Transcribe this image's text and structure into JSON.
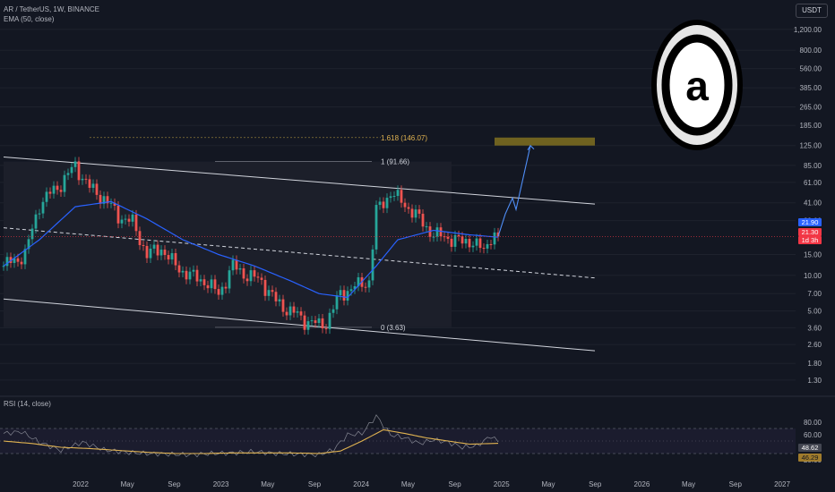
{
  "header": {
    "symbol": "AR / TetherUS, 1W, BINANCE",
    "ema_label": "EMA (50, close)",
    "rsi_label": "RSI (14, close)",
    "currency": "USDT"
  },
  "price_axis": {
    "ticks": [
      "1,200.00",
      "800.00",
      "560.00",
      "385.00",
      "265.00",
      "185.00",
      "125.00",
      "85.00",
      "61.00",
      "41.00",
      "29.00",
      "15.00",
      "10.00",
      "7.00",
      "5.00",
      "3.60",
      "2.60",
      "1.80",
      "1.30"
    ],
    "tick_values": [
      1200,
      800,
      560,
      385,
      265,
      185,
      125,
      85,
      61,
      41,
      29,
      15,
      10,
      7,
      5,
      3.6,
      2.6,
      1.8,
      1.3
    ],
    "scale": "log",
    "range": [
      1.0,
      1500
    ]
  },
  "rsi_axis": {
    "ticks": [
      "80.00",
      "60.00",
      "20.00"
    ],
    "tick_values": [
      80,
      60,
      20
    ],
    "range": [
      0,
      100
    ],
    "bands": [
      30,
      70
    ]
  },
  "time_axis": {
    "labels": [
      "2022",
      "May",
      "Sep",
      "2023",
      "May",
      "Sep",
      "2024",
      "May",
      "Sep",
      "2025",
      "May",
      "Sep",
      "2026",
      "May",
      "Sep",
      "2027"
    ]
  },
  "tags": {
    "price": "21.90",
    "close": "21.30",
    "countdown": "1d 3h",
    "rsi": "48.62",
    "rsi_ma": "46.29"
  },
  "fibonacci": [
    {
      "label": "1.618 (146.07)",
      "price": 146.07
    },
    {
      "label": "1 (91.66)",
      "price": 91.66
    },
    {
      "label": "0 (3.63)",
      "price": 3.63
    }
  ],
  "colors": {
    "background": "#131722",
    "up": "#26a69a",
    "down": "#ef5350",
    "ema": "#2962ff",
    "rsi": "#7e57c2",
    "rsi_ma": "#e0b351",
    "target_box": "#807020",
    "channel": "#d1d4dc"
  },
  "logo": {
    "icon": "arweave-logo-icon",
    "glyph": "a"
  },
  "chart_data": {
    "type": "candlestick",
    "series": [
      {
        "name": "AR / TetherUS",
        "anchors_close": [
          [
            0,
            12
          ],
          [
            6,
            15
          ],
          [
            10,
            40
          ],
          [
            16,
            60
          ],
          [
            20,
            85
          ],
          [
            24,
            55
          ],
          [
            28,
            45
          ],
          [
            32,
            32
          ],
          [
            36,
            28
          ],
          [
            40,
            15
          ],
          [
            44,
            17
          ],
          [
            48,
            12
          ],
          [
            52,
            10
          ],
          [
            56,
            9
          ],
          [
            60,
            7
          ],
          [
            64,
            12
          ],
          [
            68,
            10
          ],
          [
            72,
            9
          ],
          [
            76,
            6
          ],
          [
            80,
            5
          ],
          [
            84,
            4.2
          ],
          [
            88,
            3.8
          ],
          [
            90,
            4
          ],
          [
            94,
            7
          ],
          [
            98,
            8
          ],
          [
            102,
            9
          ],
          [
            104,
            35
          ],
          [
            108,
            50
          ],
          [
            112,
            40
          ],
          [
            116,
            30
          ],
          [
            120,
            22
          ],
          [
            124,
            21
          ],
          [
            128,
            19
          ],
          [
            130,
            20
          ],
          [
            132,
            18
          ],
          [
            134,
            16
          ],
          [
            136,
            22
          ],
          [
            138,
            21.3
          ]
        ]
      },
      {
        "name": "EMA",
        "anchors": [
          [
            0,
            12
          ],
          [
            10,
            20
          ],
          [
            20,
            38
          ],
          [
            30,
            42
          ],
          [
            40,
            30
          ],
          [
            50,
            20
          ],
          [
            60,
            15
          ],
          [
            70,
            12
          ],
          [
            80,
            9
          ],
          [
            88,
            7
          ],
          [
            96,
            6.5
          ],
          [
            104,
            12
          ],
          [
            110,
            20
          ],
          [
            120,
            24
          ],
          [
            130,
            22
          ],
          [
            138,
            21
          ]
        ]
      },
      {
        "name": "RSI",
        "anchors": [
          [
            0,
            62
          ],
          [
            5,
            65
          ],
          [
            10,
            48
          ],
          [
            16,
            35
          ],
          [
            22,
            48
          ],
          [
            28,
            36
          ],
          [
            34,
            32
          ],
          [
            40,
            30
          ],
          [
            46,
            29
          ],
          [
            52,
            28
          ],
          [
            58,
            30
          ],
          [
            64,
            31
          ],
          [
            70,
            33
          ],
          [
            76,
            30
          ],
          [
            82,
            29
          ],
          [
            88,
            28
          ],
          [
            92,
            36
          ],
          [
            96,
            60
          ],
          [
            100,
            62
          ],
          [
            104,
            90
          ],
          [
            108,
            60
          ],
          [
            112,
            55
          ],
          [
            116,
            46
          ],
          [
            120,
            52
          ],
          [
            124,
            48
          ],
          [
            128,
            40
          ],
          [
            132,
            42
          ],
          [
            136,
            58
          ],
          [
            138,
            48.62
          ]
        ]
      },
      {
        "name": "RSI MA",
        "anchors": [
          [
            0,
            50
          ],
          [
            8,
            46
          ],
          [
            16,
            40
          ],
          [
            24,
            38
          ],
          [
            32,
            35
          ],
          [
            40,
            32
          ],
          [
            48,
            30
          ],
          [
            56,
            30
          ],
          [
            64,
            31
          ],
          [
            72,
            31
          ],
          [
            80,
            31
          ],
          [
            88,
            30
          ],
          [
            94,
            34
          ],
          [
            100,
            50
          ],
          [
            106,
            68
          ],
          [
            112,
            62
          ],
          [
            118,
            55
          ],
          [
            124,
            50
          ],
          [
            130,
            45
          ],
          [
            138,
            46.29
          ]
        ]
      }
    ],
    "channel": {
      "upper": [
        [
          0,
          100
        ],
        [
          165,
          40
        ]
      ],
      "lower": [
        [
          0,
          6.3
        ],
        [
          165,
          2.3
        ]
      ],
      "middle": [
        [
          0,
          25.2
        ],
        [
          165,
          9.5
        ]
      ]
    },
    "projection": [
      [
        138,
        21.3
      ],
      [
        140,
        33
      ],
      [
        142,
        45
      ],
      [
        143,
        36
      ],
      [
        147,
        125
      ]
    ],
    "target_zone": {
      "x": [
        137,
        165
      ],
      "price": [
        125,
        146.07
      ]
    }
  }
}
